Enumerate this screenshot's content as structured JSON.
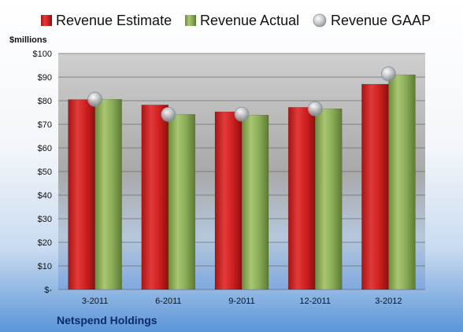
{
  "chart_data": {
    "type": "bar",
    "title": "",
    "unit_label": "$millions",
    "footer": "Netspend Holdings",
    "categories": [
      "3-2011",
      "6-2011",
      "9-2011",
      "12-2011",
      "3-2012"
    ],
    "series": [
      {
        "name": "Revenue Estimate",
        "type": "bar",
        "color": "#cc1f1f",
        "values": [
          80.5,
          78.2,
          75.3,
          77.2,
          87.0
        ]
      },
      {
        "name": "Revenue Actual",
        "type": "bar",
        "color": "#8aac58",
        "values": [
          80.6,
          74.2,
          73.9,
          76.6,
          91.0
        ]
      },
      {
        "name": "Revenue GAAP",
        "type": "marker",
        "color": "#b8bcc2",
        "values": [
          80.6,
          74.2,
          74.3,
          76.6,
          91.4
        ]
      }
    ],
    "ylim": [
      0,
      100
    ],
    "yticks": [
      0,
      10,
      20,
      30,
      40,
      50,
      60,
      70,
      80,
      90,
      100
    ],
    "ytick_labels": [
      "$-",
      "$10",
      "$20",
      "$30",
      "$40",
      "$50",
      "$60",
      "$70",
      "$80",
      "$90",
      "$100"
    ],
    "grid": true,
    "legend_position": "top"
  }
}
